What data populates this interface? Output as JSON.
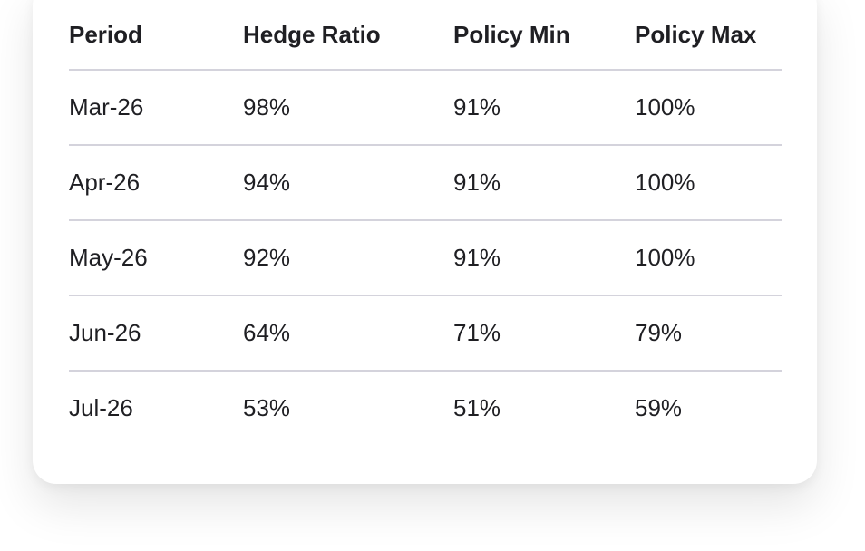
{
  "table": {
    "columns": [
      "Period",
      "Hedge Ratio",
      "Policy Min",
      "Policy Max"
    ],
    "rows": [
      [
        "Mar-26",
        "98%",
        "91%",
        "100%"
      ],
      [
        "Apr-26",
        "94%",
        "91%",
        "100%"
      ],
      [
        "May-26",
        "92%",
        "91%",
        "100%"
      ],
      [
        "Jun-26",
        "64%",
        "71%",
        "79%"
      ],
      [
        "Jul-26",
        "53%",
        "51%",
        "59%"
      ]
    ]
  }
}
